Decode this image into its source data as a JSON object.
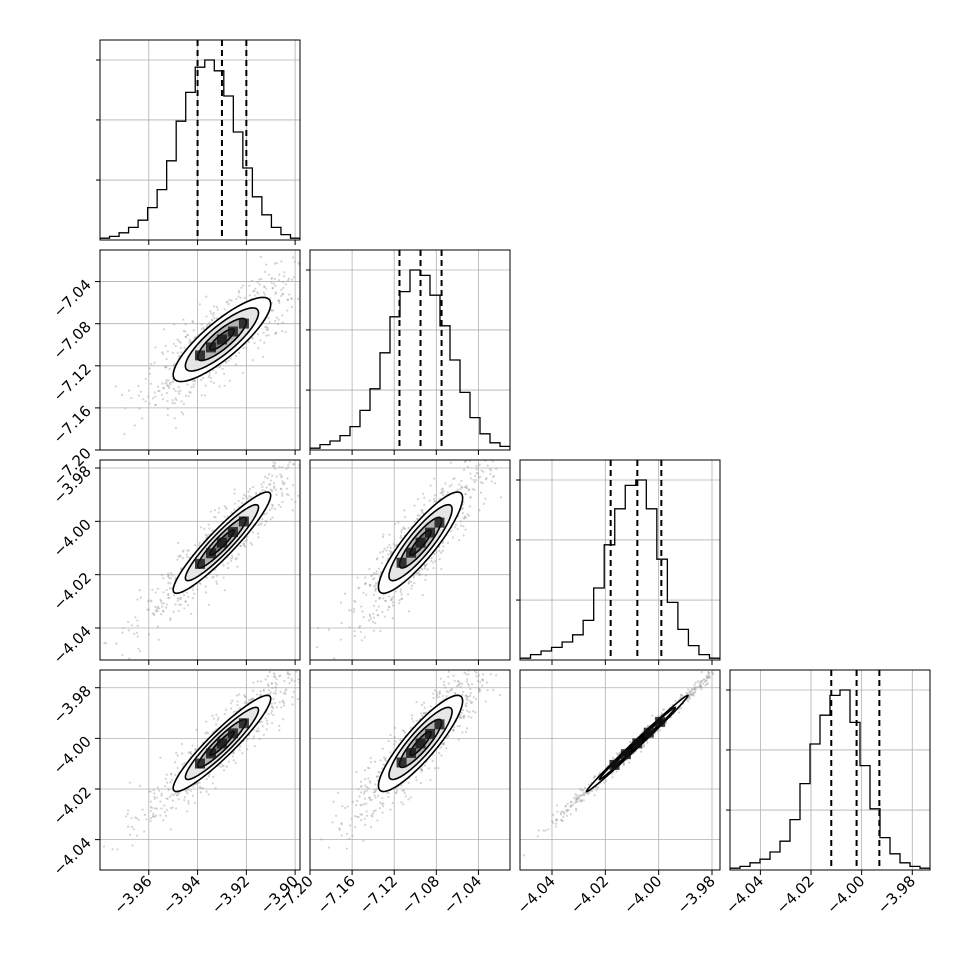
{
  "chart_data": {
    "type": "corner",
    "title": "",
    "n_params": 4,
    "parameters": [
      {
        "label": "",
        "median": -3.93,
        "q16": -3.94,
        "q84": -3.92,
        "range": [
          -3.98,
          -3.898
        ],
        "ticks": [
          -3.96,
          -3.94,
          -3.92,
          -3.9
        ],
        "tick_labels": [
          "−3.96",
          "−3.94",
          "−3.92",
          "−3.90"
        ]
      },
      {
        "label": "",
        "median": -7.095,
        "q16": -7.115,
        "q84": -7.075,
        "range": [
          -7.2,
          -7.01
        ],
        "ticks": [
          -7.2,
          -7.16,
          -7.12,
          -7.08,
          -7.04
        ],
        "tick_labels": [
          "−7.20",
          "−7.16",
          "−7.12",
          "−7.08",
          "−7.04"
        ]
      },
      {
        "label": "",
        "median": -4.008,
        "q16": -4.018,
        "q84": -3.999,
        "range": [
          -4.052,
          -3.977
        ],
        "ticks": [
          -4.04,
          -4.02,
          -4.0,
          -3.98
        ],
        "tick_labels": [
          "−4.04",
          "−4.02",
          "−4.00",
          "−3.98"
        ]
      },
      {
        "label": "",
        "median": -4.002,
        "q16": -4.012,
        "q84": -3.993,
        "range": [
          -4.052,
          -3.973
        ],
        "ticks": [
          -4.04,
          -4.02,
          -4.0,
          -3.98
        ],
        "tick_labels": [
          "−4.04",
          "−4.02",
          "−4.00",
          "−3.98"
        ]
      }
    ],
    "histograms": [
      [
        0.01,
        0.02,
        0.04,
        0.07,
        0.11,
        0.18,
        0.28,
        0.44,
        0.66,
        0.82,
        0.96,
        1.0,
        0.94,
        0.8,
        0.6,
        0.4,
        0.24,
        0.14,
        0.07,
        0.03,
        0.01
      ],
      [
        0.01,
        0.03,
        0.05,
        0.08,
        0.13,
        0.22,
        0.34,
        0.54,
        0.74,
        0.88,
        1.0,
        0.97,
        0.86,
        0.69,
        0.5,
        0.32,
        0.18,
        0.09,
        0.04,
        0.02
      ],
      [
        0.01,
        0.03,
        0.05,
        0.07,
        0.1,
        0.14,
        0.22,
        0.4,
        0.64,
        0.84,
        0.97,
        1.0,
        0.84,
        0.56,
        0.32,
        0.17,
        0.08,
        0.03,
        0.01
      ],
      [
        0.01,
        0.02,
        0.04,
        0.06,
        0.1,
        0.16,
        0.28,
        0.48,
        0.7,
        0.86,
        0.97,
        1.0,
        0.82,
        0.58,
        0.34,
        0.18,
        0.09,
        0.04,
        0.02,
        0.01
      ]
    ],
    "correlations": {
      "1-0": 0.84,
      "2-0": 0.93,
      "3-0": 0.93,
      "2-1": 0.88,
      "3-1": 0.88,
      "3-2": 0.995
    },
    "quantile_style": "dashed black lines at 16th, 50th, 84th percentiles",
    "contour_levels": [
      "0.5-sigma",
      "1-sigma",
      "1.5-sigma",
      "2-sigma"
    ],
    "grid": true,
    "colors": {
      "lines": "#000000",
      "points": "#9e9e9e",
      "grid": "#b0b0b0",
      "fill_dark": "#3a3a3a",
      "fill_mid": "#8a8a8a",
      "fill_light": "#d2d2d2"
    }
  }
}
